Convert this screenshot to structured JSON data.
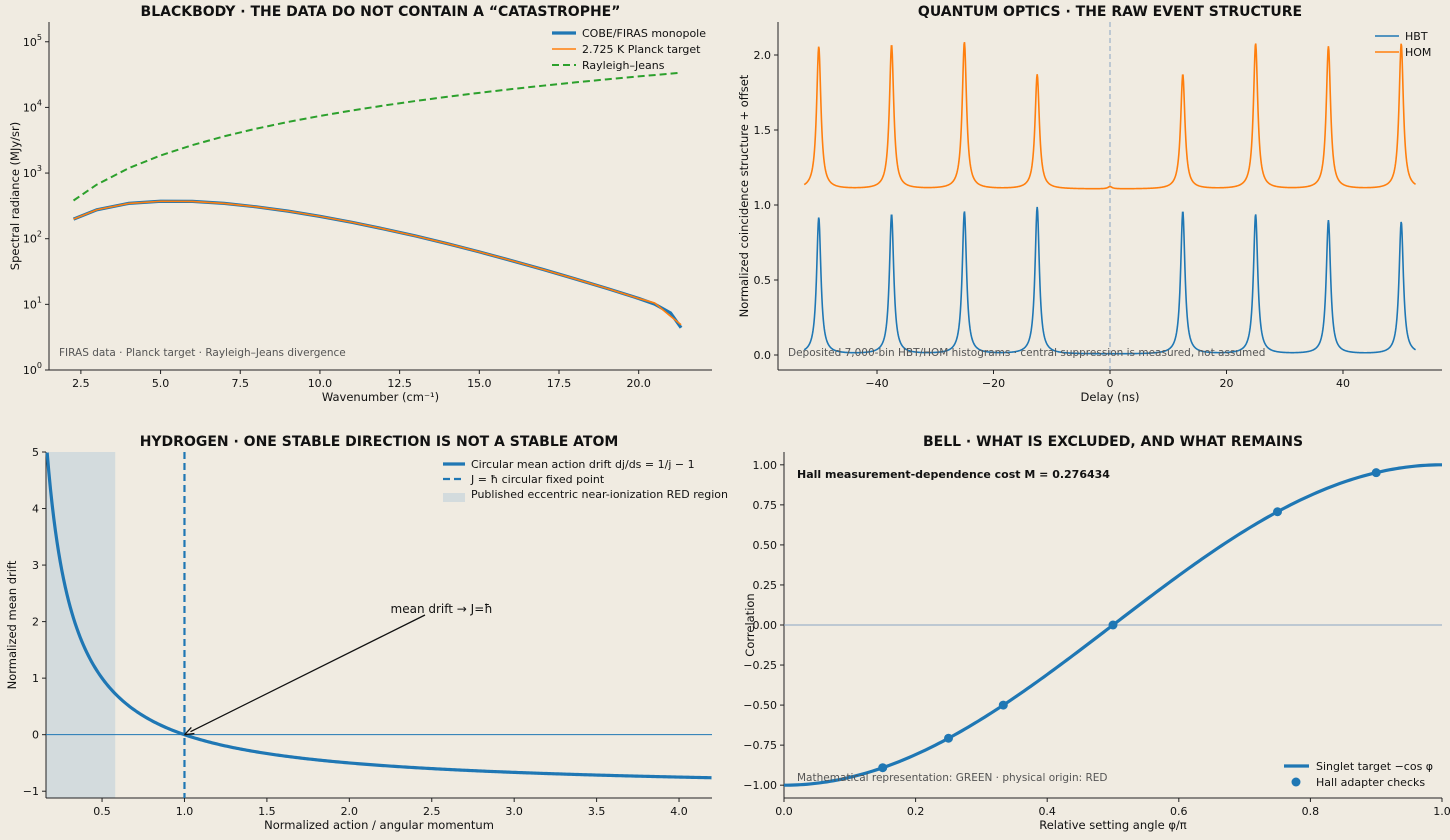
{
  "chart_data": [
    {
      "id": "blackbody",
      "type": "line",
      "title": "BLACKBODY · THE DATA DO NOT CONTAIN A “CATASTROPHE”",
      "xlabel": "Wavenumber (cm⁻¹)",
      "ylabel": "Spectral radiance (MJy/sr)",
      "xlim": [
        1.5,
        22.3
      ],
      "ylim": [
        1,
        200000
      ],
      "yscale": "log",
      "xticks": [
        2.5,
        5.0,
        7.5,
        10.0,
        12.5,
        15.0,
        17.5,
        20.0
      ],
      "xtick_labels": [
        "2.5",
        "5.0",
        "7.5",
        "10.0",
        "12.5",
        "15.0",
        "17.5",
        "20.0"
      ],
      "yticks": [
        1,
        10,
        100,
        1000,
        10000,
        100000
      ],
      "ytick_labels": [
        [
          "10",
          "0"
        ],
        [
          "10",
          "1"
        ],
        [
          "10",
          "2"
        ],
        [
          "10",
          "3"
        ],
        [
          "10",
          "4"
        ],
        [
          "10",
          "5"
        ]
      ],
      "legend_position": "top-right",
      "series": [
        {
          "name": "COBE/FIRAS monopole",
          "color": "#1f77b4",
          "style": "solid",
          "width": 3.2,
          "x": [
            2.27,
            3,
            4,
            5,
            6,
            7,
            8,
            9,
            10,
            11,
            12,
            13,
            14,
            15,
            16,
            17,
            18,
            19,
            20,
            20.5,
            21,
            21.33
          ],
          "y": [
            199,
            276,
            345,
            372,
            370,
            345,
            306,
            263,
            219,
            178,
            141,
            110,
            84,
            63,
            46.5,
            34,
            24.5,
            17.5,
            12.3,
            10.1,
            7.4,
            4.4
          ]
        },
        {
          "name": "2.725 K Planck target",
          "color": "#ff7f0e",
          "style": "solid",
          "width": 1.6,
          "x": [
            2.27,
            3,
            4,
            5,
            6,
            7,
            8,
            9,
            10,
            11,
            12,
            13,
            14,
            15,
            16,
            17,
            18,
            19,
            20,
            20.5,
            21,
            21.33
          ],
          "y": [
            199,
            276,
            345,
            372,
            370,
            345,
            306,
            263,
            219,
            178,
            141,
            110,
            84,
            63,
            46.5,
            34,
            24.5,
            17.5,
            12.3,
            10.5,
            6.6,
            4.9
          ]
        },
        {
          "name": "Rayleigh–Jeans",
          "color": "#2ca02c",
          "style": "dashed",
          "width": 2,
          "x": [
            2.27,
            3,
            4,
            5,
            6,
            7,
            8,
            9,
            10,
            11,
            12,
            13,
            14,
            15,
            16,
            17,
            18,
            19,
            20,
            21,
            21.33
          ],
          "y": [
            382,
            667,
            1186,
            1853,
            2668,
            3632,
            4744,
            6004,
            7412,
            8969,
            10673,
            12526,
            14527,
            16677,
            18975,
            21421,
            24015,
            26758,
            29649,
            32688,
            33800
          ]
        }
      ],
      "note": "FIRAS data · Planck target · Rayleigh–Jeans divergence"
    },
    {
      "id": "quantum",
      "type": "line",
      "title": "QUANTUM OPTICS · THE RAW EVENT STRUCTURE",
      "xlabel": "Delay (ns)",
      "ylabel": "Normalized coincidence structure + offset",
      "xlim": [
        -57,
        57
      ],
      "ylim": [
        -0.1,
        2.22
      ],
      "xticks": [
        -40,
        -20,
        0,
        20,
        40
      ],
      "xtick_labels": [
        "−40",
        "−20",
        "0",
        "20",
        "40"
      ],
      "yticks": [
        0.0,
        0.5,
        1.0,
        1.5,
        2.0
      ],
      "ytick_labels": [
        "0.0",
        "0.5",
        "1.0",
        "1.5",
        "2.0"
      ],
      "legend_position": "top-right",
      "peak_period": 12.5,
      "peak_width": 0.45,
      "x_range": [
        -52.5,
        52.5
      ],
      "series": [
        {
          "name": "HBT",
          "color": "#1f77b4",
          "offset": 0.0,
          "peak_centers": [
            -50,
            -37.5,
            -25,
            -12.5,
            0,
            12.5,
            25,
            37.5,
            50
          ],
          "peak_heights": [
            0.93,
            0.95,
            0.97,
            1.0,
            0.0,
            0.97,
            0.95,
            0.91,
            0.9
          ]
        },
        {
          "name": "HOM",
          "color": "#ff7f0e",
          "offset": 1.1,
          "peak_centers": [
            -50,
            -37.5,
            -25,
            -12.5,
            0,
            12.5,
            25,
            37.5,
            50
          ],
          "peak_heights": [
            0.97,
            0.98,
            1.0,
            0.78,
            0.015,
            0.78,
            0.99,
            0.97,
            0.99
          ]
        }
      ],
      "vline": {
        "x": 0,
        "color": "#8aa6c2",
        "style": "dashed"
      },
      "note": "Deposited 7,000-bin HBT/HOM histograms · central suppression is measured, not assumed"
    },
    {
      "id": "hydrogen",
      "type": "line",
      "title": "HYDROGEN · ONE STABLE DIRECTION IS NOT A STABLE ATOM",
      "xlabel": "Normalized action / angular momentum",
      "ylabel": "Normalized mean drift",
      "xlim": [
        0.16,
        4.2
      ],
      "ylim": [
        -1.12,
        5.0
      ],
      "xticks": [
        0.5,
        1.0,
        1.5,
        2.0,
        2.5,
        3.0,
        3.5,
        4.0
      ],
      "xtick_labels": [
        "0.5",
        "1.0",
        "1.5",
        "2.0",
        "2.5",
        "3.0",
        "3.5",
        "4.0"
      ],
      "yticks": [
        -1,
        0,
        1,
        2,
        3,
        4,
        5
      ],
      "ytick_labels": [
        "−1",
        "0",
        "1",
        "2",
        "3",
        "4",
        "5"
      ],
      "legend_position": "top-right",
      "series": [
        {
          "name": "Circular mean action drift  dj/ds = 1/j − 1",
          "color": "#1f77b4",
          "style": "solid",
          "formula": "1/j - 1"
        },
        {
          "name": "J = ħ circular fixed point",
          "color": "#1f77b4",
          "style": "dashed",
          "x": 1.0
        },
        {
          "name": "Published eccentric near-ionization RED region",
          "color": "#d3dbdd",
          "style": "band",
          "x_range": [
            0.16,
            0.58
          ]
        }
      ],
      "hline": {
        "y": 0,
        "color": "#1f77b4"
      },
      "annotation": {
        "text": "mean drift → J=ħ",
        "xy": [
          1.0,
          0.0
        ],
        "xytext": [
          2.25,
          2.22
        ]
      }
    },
    {
      "id": "bell",
      "type": "line",
      "title": "BELL · WHAT IS EXCLUDED, AND WHAT REMAINS",
      "xlabel": "Relative setting angle  φ/π",
      "ylabel": "Correlation",
      "xlim": [
        0.0,
        1.0
      ],
      "ylim": [
        -1.08,
        1.08
      ],
      "xticks": [
        0.0,
        0.2,
        0.4,
        0.6,
        0.8,
        1.0
      ],
      "xtick_labels": [
        "0.0",
        "0.2",
        "0.4",
        "0.6",
        "0.8",
        "1.0"
      ],
      "yticks": [
        -1.0,
        -0.75,
        -0.5,
        -0.25,
        0.0,
        0.25,
        0.5,
        0.75,
        1.0
      ],
      "ytick_labels": [
        "−1.00",
        "−0.75",
        "−0.50",
        "−0.25",
        "0.00",
        "0.25",
        "0.50",
        "0.75",
        "1.00"
      ],
      "legend_position": "bottom-right",
      "series": [
        {
          "name": "Singlet target  −cos φ",
          "color": "#1f77b4",
          "style": "solid",
          "formula": "-cos(pi*x)"
        },
        {
          "name": "Hall adapter checks",
          "color": "#1f77b4",
          "style": "points",
          "x": [
            0.15,
            0.25,
            0.3333,
            0.5,
            0.75,
            0.9
          ],
          "y": [
            -0.891,
            -0.707,
            -0.5,
            0.0,
            0.707,
            0.951
          ]
        }
      ],
      "hline": {
        "y": 0,
        "color": "#8aa6c2"
      },
      "bold_note": "Hall measurement-dependence cost  M = 0.276434",
      "note": "Mathematical representation: GREEN · physical origin: RED"
    }
  ]
}
